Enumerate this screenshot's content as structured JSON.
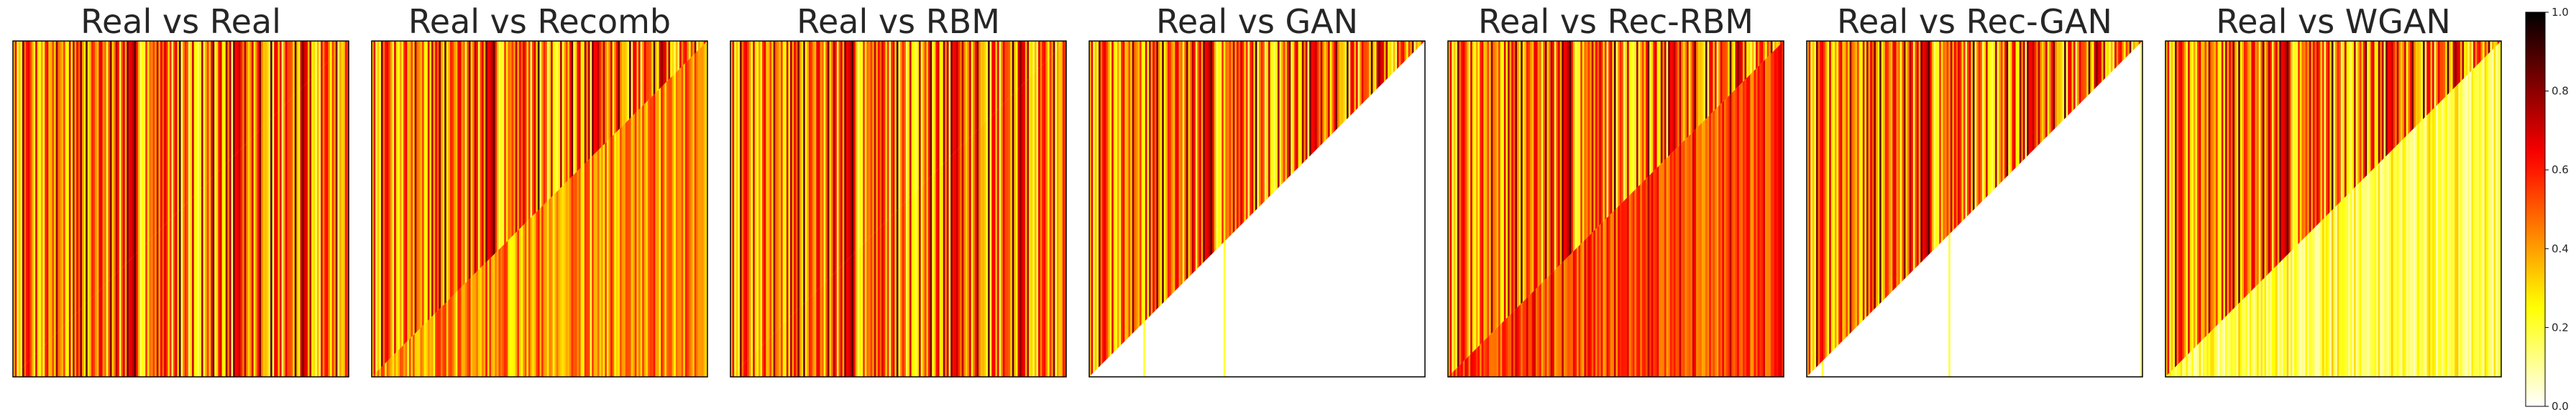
{
  "chart_data": {
    "type": "heatmap",
    "colormap": "hot_r",
    "layout": "upper triangle = real data LD; lower triangle = compared data LD",
    "colorbar": {
      "range": [
        0.0,
        1.0
      ],
      "ticks": [
        "0.0",
        "0.2",
        "0.4",
        "0.6",
        "0.8",
        "1.0"
      ]
    },
    "panels": [
      {
        "title": "Real vs Real",
        "upper_mean": 0.55,
        "lower_mean": 0.55,
        "lower_spread": 1.0,
        "lower_same_as_upper": true,
        "blank_lower": false,
        "sparse_lower": 0.0
      },
      {
        "title": "Real vs Recomb",
        "upper_mean": 0.55,
        "lower_mean": 0.42,
        "lower_spread": 0.35,
        "lower_same_as_upper": false,
        "blank_lower": false,
        "sparse_lower": 0.0
      },
      {
        "title": "Real vs RBM",
        "upper_mean": 0.55,
        "lower_mean": 0.55,
        "lower_spread": 0.95,
        "lower_same_as_upper": true,
        "blank_lower": false,
        "sparse_lower": 0.0
      },
      {
        "title": "Real vs GAN",
        "upper_mean": 0.55,
        "lower_mean": 0.0,
        "lower_spread": 0.0,
        "lower_same_as_upper": false,
        "blank_lower": true,
        "sparse_lower": 0.18
      },
      {
        "title": "Real vs Rec-RBM",
        "upper_mean": 0.55,
        "lower_mean": 0.55,
        "lower_spread": 0.3,
        "lower_same_as_upper": false,
        "blank_lower": false,
        "sparse_lower": 0.0
      },
      {
        "title": "Real vs Rec-GAN",
        "upper_mean": 0.55,
        "lower_mean": 0.0,
        "lower_spread": 0.0,
        "lower_same_as_upper": false,
        "blank_lower": true,
        "sparse_lower": 0.1
      },
      {
        "title": "Real vs WGAN",
        "upper_mean": 0.55,
        "lower_mean": 0.2,
        "lower_spread": 0.25,
        "lower_same_as_upper": false,
        "blank_lower": false,
        "sparse_lower": 0.0
      }
    ]
  }
}
